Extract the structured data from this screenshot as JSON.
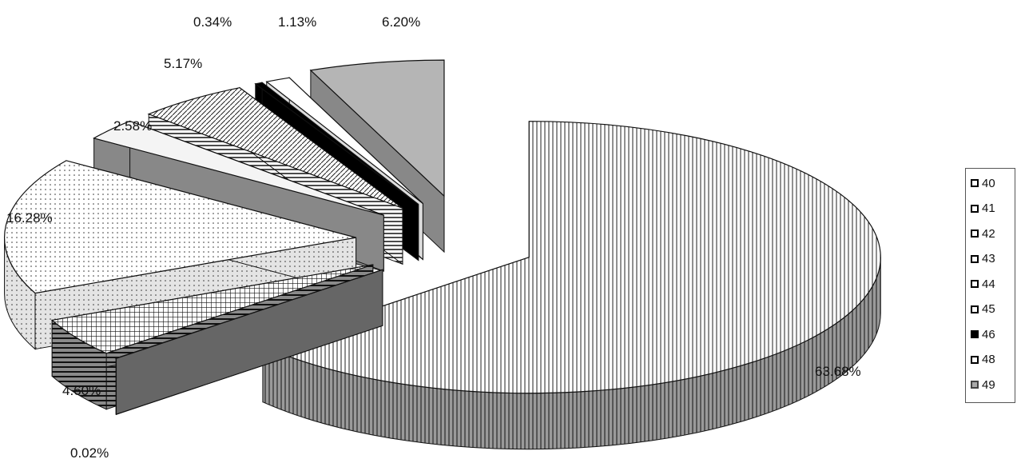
{
  "chart_data": {
    "type": "pie",
    "labels": [
      "40",
      "41",
      "42",
      "43",
      "44",
      "45",
      "46",
      "48",
      "49"
    ],
    "values": [
      63.68,
      0.02,
      4.6,
      16.28,
      2.58,
      5.17,
      0.34,
      1.13,
      6.2
    ],
    "data_labels": [
      "63.68%",
      "0.02%",
      "4.60%",
      "16.28%",
      "2.58%",
      "5.17%",
      "0.34%",
      "1.13%",
      "6.20%"
    ],
    "legend_placement": "right",
    "style": "3d exploded pie, monochrome pattern fills"
  }
}
